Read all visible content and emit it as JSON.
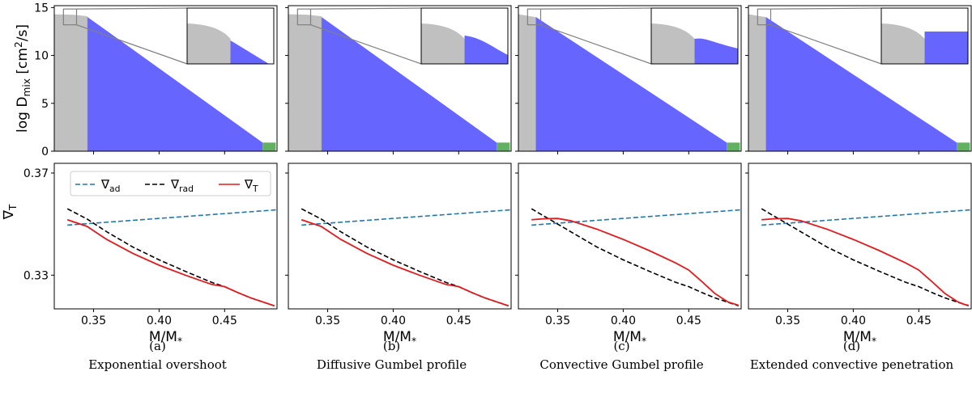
{
  "chart_data": {
    "type": "line",
    "panels": [
      {
        "letter": "(a)",
        "caption": "Exponential overshoot",
        "core_edge": 0.3455,
        "inset_grey_frac": 0.5,
        "grad_T": [
          [
            0.33,
            0.3517
          ],
          [
            0.345,
            0.3491
          ],
          [
            0.36,
            0.344
          ],
          [
            0.38,
            0.3385
          ],
          [
            0.4,
            0.3339
          ],
          [
            0.42,
            0.33
          ],
          [
            0.44,
            0.3264
          ],
          [
            0.45,
            0.3255
          ],
          [
            0.46,
            0.3232
          ],
          [
            0.47,
            0.3211
          ],
          [
            0.488,
            0.318
          ]
        ],
        "grad_rad": [
          [
            0.33,
            0.356
          ],
          [
            0.345,
            0.352
          ],
          [
            0.36,
            0.347
          ],
          [
            0.38,
            0.341
          ],
          [
            0.4,
            0.336
          ],
          [
            0.42,
            0.3315
          ],
          [
            0.44,
            0.3272
          ],
          [
            0.45,
            0.3255
          ],
          [
            0.46,
            0.3232
          ],
          [
            0.47,
            0.3211
          ],
          [
            0.488,
            0.318
          ]
        ]
      },
      {
        "letter": "(b)",
        "caption": "Diffusive Gumbel profile",
        "core_edge": 0.3455,
        "inset_grey_frac": 0.5,
        "grad_T": [
          [
            0.33,
            0.3517
          ],
          [
            0.345,
            0.3491
          ],
          [
            0.36,
            0.344
          ],
          [
            0.38,
            0.3385
          ],
          [
            0.4,
            0.3339
          ],
          [
            0.42,
            0.33
          ],
          [
            0.44,
            0.3264
          ],
          [
            0.45,
            0.3255
          ],
          [
            0.46,
            0.3232
          ],
          [
            0.47,
            0.3211
          ],
          [
            0.488,
            0.318
          ]
        ],
        "grad_rad": [
          [
            0.33,
            0.356
          ],
          [
            0.345,
            0.352
          ],
          [
            0.36,
            0.347
          ],
          [
            0.38,
            0.341
          ],
          [
            0.4,
            0.336
          ],
          [
            0.42,
            0.3315
          ],
          [
            0.44,
            0.3272
          ],
          [
            0.45,
            0.3255
          ],
          [
            0.46,
            0.3232
          ],
          [
            0.47,
            0.3211
          ],
          [
            0.488,
            0.318
          ]
        ]
      },
      {
        "letter": "(c)",
        "caption": "Convective Gumbel profile",
        "core_edge": 0.3335,
        "inset_grey_frac": 0.5,
        "grad_T": [
          [
            0.33,
            0.3517
          ],
          [
            0.34,
            0.3521
          ],
          [
            0.35,
            0.3522
          ],
          [
            0.36,
            0.3513
          ],
          [
            0.38,
            0.348
          ],
          [
            0.4,
            0.344
          ],
          [
            0.42,
            0.3396
          ],
          [
            0.44,
            0.3348
          ],
          [
            0.45,
            0.332
          ],
          [
            0.46,
            0.3275
          ],
          [
            0.47,
            0.3228
          ],
          [
            0.48,
            0.3195
          ],
          [
            0.488,
            0.3182
          ]
        ],
        "grad_rad": [
          [
            0.33,
            0.356
          ],
          [
            0.34,
            0.353
          ],
          [
            0.35,
            0.35
          ],
          [
            0.36,
            0.347
          ],
          [
            0.38,
            0.341
          ],
          [
            0.4,
            0.336
          ],
          [
            0.42,
            0.3315
          ],
          [
            0.44,
            0.3272
          ],
          [
            0.45,
            0.3255
          ],
          [
            0.46,
            0.3232
          ],
          [
            0.47,
            0.3211
          ],
          [
            0.488,
            0.318
          ]
        ]
      },
      {
        "letter": "(d)",
        "caption": "Extended convective penetration",
        "core_edge": 0.3335,
        "inset_grey_frac": 0.5,
        "grad_T": [
          [
            0.33,
            0.3517
          ],
          [
            0.34,
            0.3521
          ],
          [
            0.35,
            0.3522
          ],
          [
            0.36,
            0.3513
          ],
          [
            0.38,
            0.348
          ],
          [
            0.4,
            0.344
          ],
          [
            0.42,
            0.3396
          ],
          [
            0.44,
            0.3348
          ],
          [
            0.45,
            0.332
          ],
          [
            0.46,
            0.3275
          ],
          [
            0.47,
            0.3228
          ],
          [
            0.48,
            0.3195
          ],
          [
            0.485,
            0.3185
          ],
          [
            0.488,
            0.3182
          ]
        ],
        "grad_rad": [
          [
            0.33,
            0.356
          ],
          [
            0.34,
            0.353
          ],
          [
            0.35,
            0.35
          ],
          [
            0.36,
            0.347
          ],
          [
            0.38,
            0.341
          ],
          [
            0.4,
            0.336
          ],
          [
            0.42,
            0.3315
          ],
          [
            0.44,
            0.3272
          ],
          [
            0.45,
            0.3255
          ],
          [
            0.46,
            0.3232
          ],
          [
            0.47,
            0.3211
          ],
          [
            0.488,
            0.318
          ]
        ]
      }
    ],
    "top_axis": {
      "ylabel": "log D",
      "ylabel_sub": "mix",
      "ylabel_unit_pre": " [cm",
      "ylabel_unit_sup": "2",
      "ylabel_unit_post": "/s]",
      "ylim": [
        0,
        15.2
      ],
      "yticks": [
        0,
        5,
        10,
        15
      ],
      "log_D_mix_core": [
        [
          0.32,
          14.3
        ],
        [
          0.335,
          14.25
        ],
        [
          0.345,
          14.1
        ],
        [
          0.35,
          13.9
        ]
      ],
      "log_D_mix_envelope_start": 14.0,
      "log_D_mix_envelope_end": 0.9,
      "envelope_end_x": 0.479,
      "green_zone": [
        0.479,
        0.489,
        0.9
      ]
    },
    "bottom_axis": {
      "ylabel": "∇",
      "ylabel_sub": "T",
      "ylim": [
        0.3168,
        0.3738
      ],
      "yticks": [
        0.33,
        0.37
      ],
      "ytick_labels": [
        "0.33",
        "0.37"
      ],
      "grad_ad": [
        [
          0.33,
          0.3496
        ],
        [
          0.49,
          0.3556
        ]
      ]
    },
    "xlim": [
      0.32,
      0.49
    ],
    "xticks": [
      0.35,
      0.4,
      0.45
    ],
    "xtick_labels": [
      "0.35",
      "0.40",
      "0.45"
    ],
    "xlabel": "M/M",
    "xlabel_sub": "*",
    "legend": [
      {
        "symbol": "∇",
        "sub": "ad",
        "color": "#1f77b4",
        "style": "dashed"
      },
      {
        "symbol": "∇",
        "sub": "rad",
        "color": "#000000",
        "style": "dashed"
      },
      {
        "symbol": "∇",
        "sub": "T",
        "color": "#e41a1c",
        "style": "solid"
      }
    ],
    "colors": {
      "core": "#c0c0c0",
      "envelope": "#6666ff",
      "green": "#62b062",
      "grad_ad": "#1f77b4",
      "grad_rad": "#000000",
      "grad_T": "#e41a1c",
      "inset_frame": "#808080"
    }
  }
}
